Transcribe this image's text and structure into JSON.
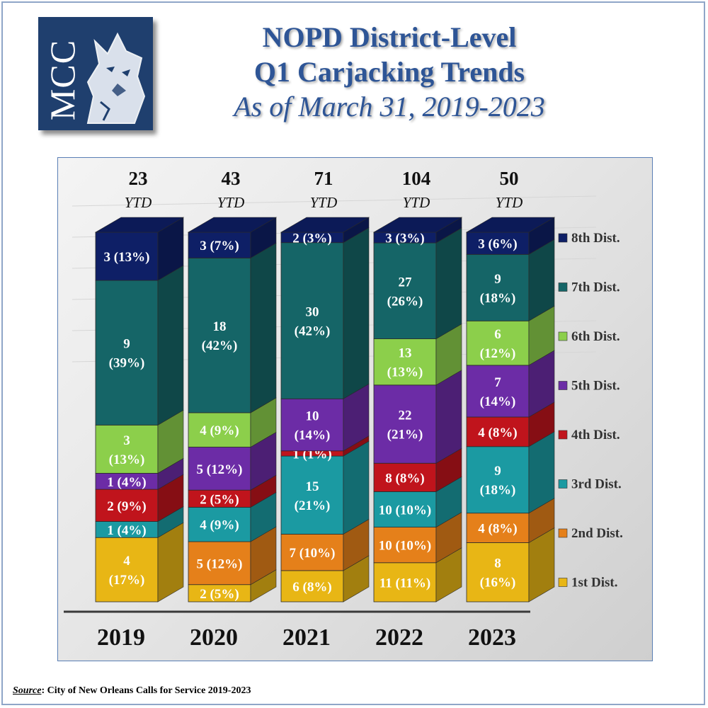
{
  "logo": {
    "text": "MCC"
  },
  "title": {
    "line1": "NOPD District-Level",
    "line2": "Q1 Carjacking Trends",
    "line3": "As of March 31, 2019-2023"
  },
  "source": {
    "label": "Source",
    "text": ":  City of New Orleans Calls for Service 2019-2023"
  },
  "colors": {
    "1st Dist.": "#e8b615",
    "2nd Dist.": "#e5801a",
    "3rd Dist.": "#1b9aa2",
    "4th Dist.": "#c0141c",
    "5th Dist.": "#6c2ca6",
    "6th Dist.": "#8ccf4b",
    "7th Dist.": "#156567",
    "8th Dist.": "#0e1f66"
  },
  "chart_data": {
    "type": "bar",
    "stacked": true,
    "ytd_label": "YTD",
    "categories": [
      "2019",
      "2020",
      "2021",
      "2022",
      "2023"
    ],
    "totals": [
      "23",
      "43",
      "71",
      "104",
      "50"
    ],
    "legend_position": "right",
    "series": [
      {
        "name": "1st Dist.",
        "values": [
          4,
          2,
          6,
          11,
          8
        ],
        "labels": [
          [
            "4",
            "(17%)"
          ],
          [
            "2 (5%)"
          ],
          [
            "6 (8%)"
          ],
          [
            "11 (11%)"
          ],
          [
            "8",
            "(16%)"
          ]
        ]
      },
      {
        "name": "2nd Dist.",
        "values": [
          0,
          5,
          7,
          10,
          4
        ],
        "labels": [
          [],
          [
            "5 (12%)"
          ],
          [
            "7 (10%)"
          ],
          [
            "10 (10%)"
          ],
          [
            "4 (8%)"
          ]
        ]
      },
      {
        "name": "3rd Dist.",
        "values": [
          1,
          4,
          15,
          10,
          9
        ],
        "labels": [
          [
            "1 (4%)"
          ],
          [
            "4 (9%)"
          ],
          [
            "15",
            "(21%)"
          ],
          [
            "10 (10%)"
          ],
          [
            "9",
            "(18%)"
          ]
        ]
      },
      {
        "name": "4th Dist.",
        "values": [
          2,
          2,
          1,
          8,
          4
        ],
        "labels": [
          [
            "2 (9%)"
          ],
          [
            "2 (5%)"
          ],
          [
            "1 (1%)"
          ],
          [
            "8 (8%)"
          ],
          [
            "4 (8%)"
          ]
        ]
      },
      {
        "name": "5th Dist.",
        "values": [
          1,
          5,
          10,
          22,
          7
        ],
        "labels": [
          [
            "1 (4%)"
          ],
          [
            "5 (12%)"
          ],
          [
            "10",
            "(14%)"
          ],
          [
            "22",
            "(21%)"
          ],
          [
            "7",
            "(14%)"
          ]
        ]
      },
      {
        "name": "6th Dist.",
        "values": [
          3,
          4,
          0,
          13,
          6
        ],
        "labels": [
          [
            "3",
            "(13%)"
          ],
          [
            "4 (9%)"
          ],
          [],
          [
            "13",
            "(13%)"
          ],
          [
            "6",
            "(12%)"
          ]
        ]
      },
      {
        "name": "7th Dist.",
        "values": [
          9,
          18,
          30,
          27,
          9
        ],
        "labels": [
          [
            "9",
            "(39%)"
          ],
          [
            "18",
            "(42%)"
          ],
          [
            "30",
            "(42%)"
          ],
          [
            "27",
            "(26%)"
          ],
          [
            "9",
            "(18%)"
          ]
        ]
      },
      {
        "name": "8th Dist.",
        "values": [
          3,
          3,
          2,
          3,
          3
        ],
        "labels": [
          [
            "3 (13%)"
          ],
          [
            "3 (7%)"
          ],
          [
            "2 (3%)"
          ],
          [
            "3 (3%)"
          ],
          [
            "3 (6%)"
          ]
        ]
      }
    ]
  }
}
